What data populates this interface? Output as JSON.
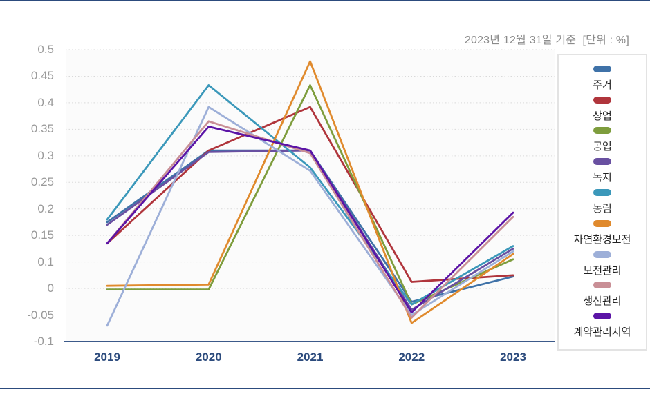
{
  "caption": "2023년 12월 31일 기준  [단위 : %]",
  "chart_data": {
    "type": "line",
    "x": [
      "2019",
      "2020",
      "2021",
      "2022",
      "2023"
    ],
    "y_tick_labels": [
      "0.5",
      "0.45",
      "0.4",
      "0.35",
      "0.3",
      "0.25",
      "0.2",
      "0.15",
      "0.1",
      "0",
      "-0.05",
      "-0.1"
    ],
    "y_tick_values": [
      0.5,
      0.45,
      0.4,
      0.35,
      0.3,
      0.25,
      0.2,
      0.15,
      0.1,
      0,
      -0.05,
      -0.1
    ],
    "ylim": [
      -0.1,
      0.5
    ],
    "grid": "horizontal-dotted",
    "legend_position": "right",
    "series": [
      {
        "name": "주거",
        "color": "#3f72a8",
        "values": [
          0.175,
          0.31,
          0.31,
          -0.025,
          0.045
        ]
      },
      {
        "name": "상업",
        "color": "#b0353c",
        "values": [
          0.135,
          0.31,
          0.392,
          0.025,
          0.05
        ]
      },
      {
        "name": "공업",
        "color": "#7e9d3d",
        "values": [
          -0.002,
          -0.002,
          0.433,
          -0.03,
          0.105
        ]
      },
      {
        "name": "녹지",
        "color": "#6950a1",
        "values": [
          0.17,
          0.307,
          0.31,
          -0.04,
          0.125
        ]
      },
      {
        "name": "농림",
        "color": "#3b98ba",
        "values": [
          0.18,
          0.433,
          0.278,
          -0.03,
          0.13
        ]
      },
      {
        "name": "자연환경보전",
        "color": "#e08a2d",
        "values": [
          0.01,
          0.015,
          0.478,
          -0.065,
          0.115
        ]
      },
      {
        "name": "보전관리",
        "color": "#9dafd8",
        "values": [
          -0.07,
          0.392,
          0.272,
          -0.05,
          0.12
        ]
      },
      {
        "name": "생산관리",
        "color": "#c98f96",
        "values": [
          0.135,
          0.365,
          0.305,
          -0.055,
          0.185
        ]
      },
      {
        "name": "계약관리지역",
        "color": "#5b14a6",
        "values": [
          0.135,
          0.355,
          0.31,
          -0.045,
          0.193
        ]
      }
    ]
  },
  "colors": {
    "axis": "#3c5a8a",
    "x_label": "#2c4b7d",
    "y_label": "#9a9a9a",
    "grid": "#d9d9d9",
    "caption": "#8b8b8b",
    "legend_border": "#e3e3e3",
    "divider": "#2c4b7d",
    "plot_bg": "#fbfbfb"
  }
}
